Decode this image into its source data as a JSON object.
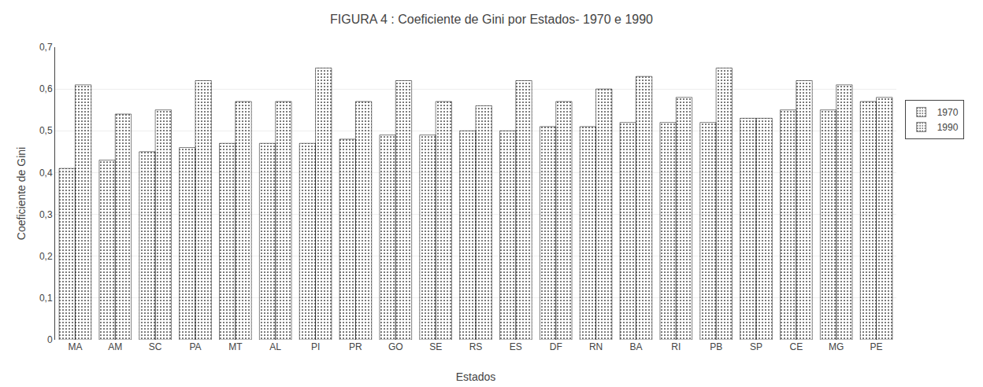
{
  "chart_data": {
    "type": "bar",
    "title": "FIGURA 4 : Coeficiente de Gini por Estados- 1970 e 1990",
    "xlabel": "Estados",
    "ylabel": "Coeficiente de Gini",
    "categories": [
      "MA",
      "AM",
      "SC",
      "PA",
      "MT",
      "AL",
      "PI",
      "PR",
      "GO",
      "SE",
      "RS",
      "ES",
      "DF",
      "RN",
      "BA",
      "RI",
      "PB",
      "SP",
      "CE",
      "MG",
      "PE"
    ],
    "series": [
      {
        "name": "1970",
        "color": "#c8c8c8",
        "values": [
          0.41,
          0.43,
          0.45,
          0.46,
          0.47,
          0.47,
          0.47,
          0.48,
          0.49,
          0.49,
          0.5,
          0.5,
          0.51,
          0.51,
          0.52,
          0.52,
          0.52,
          0.53,
          0.55,
          0.55,
          0.57
        ]
      },
      {
        "name": "1990",
        "color": "#404040",
        "values": [
          0.61,
          0.54,
          0.55,
          0.62,
          0.57,
          0.57,
          0.65,
          0.57,
          0.62,
          0.57,
          0.56,
          0.62,
          0.57,
          0.6,
          0.63,
          0.58,
          0.65,
          0.53,
          0.62,
          0.61,
          0.58
        ]
      }
    ],
    "ylim": [
      0,
      0.7
    ],
    "yticks": [
      0,
      {
        "value": 0.1,
        "label": "0,1"
      },
      {
        "value": 0.2,
        "label": "0,2"
      },
      {
        "value": 0.3,
        "label": "0,3"
      },
      {
        "value": 0.4,
        "label": "0,4"
      },
      {
        "value": 0.5,
        "label": "0,5"
      },
      {
        "value": 0.6,
        "label": "0,6"
      },
      {
        "value": 0.7,
        "label": "0,7"
      }
    ],
    "grid": true,
    "legend": "right"
  }
}
